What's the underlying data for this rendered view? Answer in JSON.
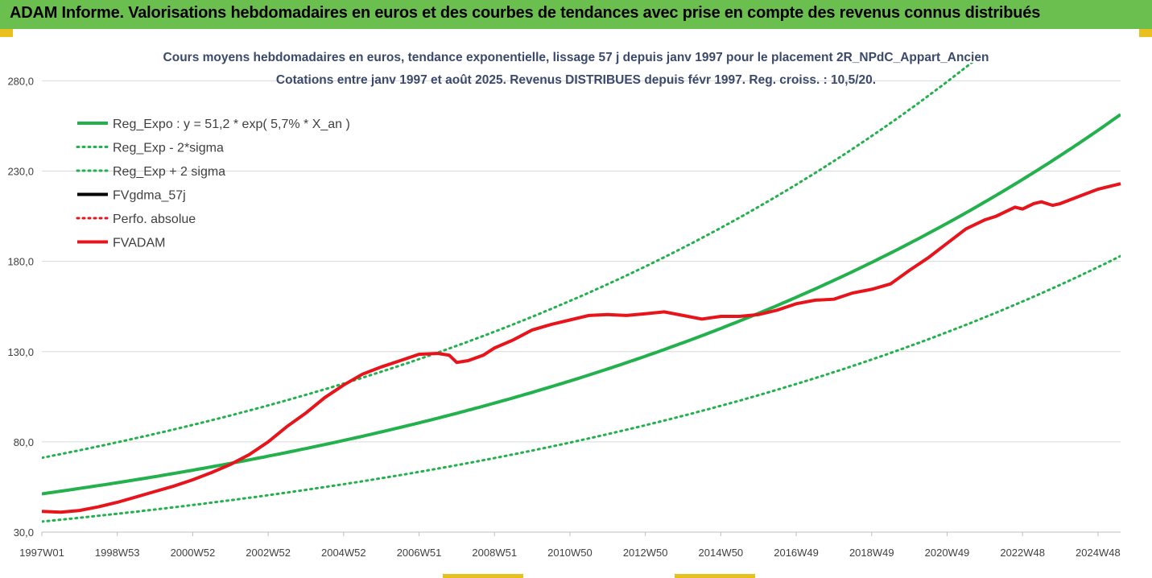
{
  "banner": {
    "title": "ADAM Informe. Valorisations hebdomadaires en euros et des courbes de tendances avec prise en compte des revenus connus distribués"
  },
  "chart_data": {
    "type": "line",
    "title": "Cours moyens hebdomadaires en euros, tendance exponentielle, lissage 57 j depuis janv 1997 pour le placement 2R_NPdC_Appart_Ancien",
    "subtitle": "Cotations entre janv 1997 et août 2025. Revenus DISTRIBUES depuis févr 1997. Reg. croiss. : 10,5/20.",
    "ylim": [
      30,
      290
    ],
    "y_ticks": [
      "30,0",
      "80,0",
      "130,0",
      "180,0",
      "230,0",
      "280,0"
    ],
    "y_tick_values": [
      30,
      80,
      130,
      180,
      230,
      280
    ],
    "x_range": [
      1997.0,
      2025.6
    ],
    "x_ticks": [
      "1997W01",
      "1998W53",
      "2000W52",
      "2002W52",
      "2004W52",
      "2006W51",
      "2008W51",
      "2010W50",
      "2012W50",
      "2014W50",
      "2016W49",
      "2018W49",
      "2020W49",
      "2022W48",
      "2024W48"
    ],
    "x_tick_years": [
      1997.0,
      1999.0,
      2001.0,
      2003.0,
      2005.0,
      2007.0,
      2009.0,
      2011.0,
      2013.0,
      2015.0,
      2017.0,
      2019.0,
      2021.0,
      2023.0,
      2025.0
    ],
    "grid": true,
    "legend_position": "top-left",
    "regression": {
      "a": 51.2,
      "rate": 0.057
    },
    "series": [
      {
        "name": "Reg_Expo : y = 51,2 * exp( 5,7% *  X_an )",
        "color": "#22b14c",
        "style": "solid",
        "factor": 1.0
      },
      {
        "name": "Reg_Exp - 2*sigma",
        "color": "#22b14c",
        "style": "dotted",
        "factor": 0.7
      },
      {
        "name": "Reg_Exp + 2 sigma",
        "color": "#22b14c",
        "style": "dotted",
        "factor": 1.39
      },
      {
        "name": "FVgdma_57j",
        "color": "#000000",
        "style": "solid"
      },
      {
        "name": "Perfo. absolue",
        "color": "#e8141c",
        "style": "dotted"
      },
      {
        "name": "FVADAM",
        "color": "#e8141c",
        "style": "solid",
        "x": [
          1997.0,
          1997.5,
          1998.0,
          1998.5,
          1999.0,
          1999.5,
          2000.0,
          2000.5,
          2001.0,
          2001.5,
          2002.0,
          2002.5,
          2003.0,
          2003.5,
          2004.0,
          2004.5,
          2005.0,
          2005.5,
          2006.0,
          2006.5,
          2007.0,
          2007.5,
          2007.8,
          2008.0,
          2008.3,
          2008.7,
          2009.0,
          2009.5,
          2010.0,
          2010.5,
          2011.0,
          2011.5,
          2012.0,
          2012.5,
          2013.0,
          2013.5,
          2014.0,
          2014.5,
          2015.0,
          2015.5,
          2016.0,
          2016.5,
          2017.0,
          2017.5,
          2018.0,
          2018.5,
          2019.0,
          2019.5,
          2020.0,
          2020.5,
          2021.0,
          2021.5,
          2022.0,
          2022.3,
          2022.5,
          2022.8,
          2023.0,
          2023.3,
          2023.5,
          2023.8,
          2024.0,
          2024.5,
          2025.0,
          2025.6
        ],
        "values": [
          41.5,
          41.0,
          42.0,
          44.0,
          46.5,
          49.5,
          52.5,
          55.5,
          59.0,
          63.0,
          67.5,
          73.0,
          80.0,
          88.5,
          96.0,
          104.5,
          111.5,
          117.5,
          121.5,
          125.0,
          128.5,
          129.0,
          128.0,
          124.0,
          125.0,
          128.0,
          132.0,
          136.5,
          142.0,
          145.0,
          147.5,
          150.0,
          150.5,
          150.0,
          151.0,
          152.0,
          150.0,
          148.0,
          149.5,
          149.5,
          150.5,
          153.0,
          156.5,
          158.5,
          159.0,
          162.5,
          164.5,
          167.5,
          175.0,
          182.0,
          190.0,
          198.0,
          203.0,
          205.0,
          207.0,
          210.0,
          209.0,
          212.0,
          213.0,
          211.0,
          212.0,
          216.0,
          220.0,
          223.0
        ]
      }
    ]
  }
}
